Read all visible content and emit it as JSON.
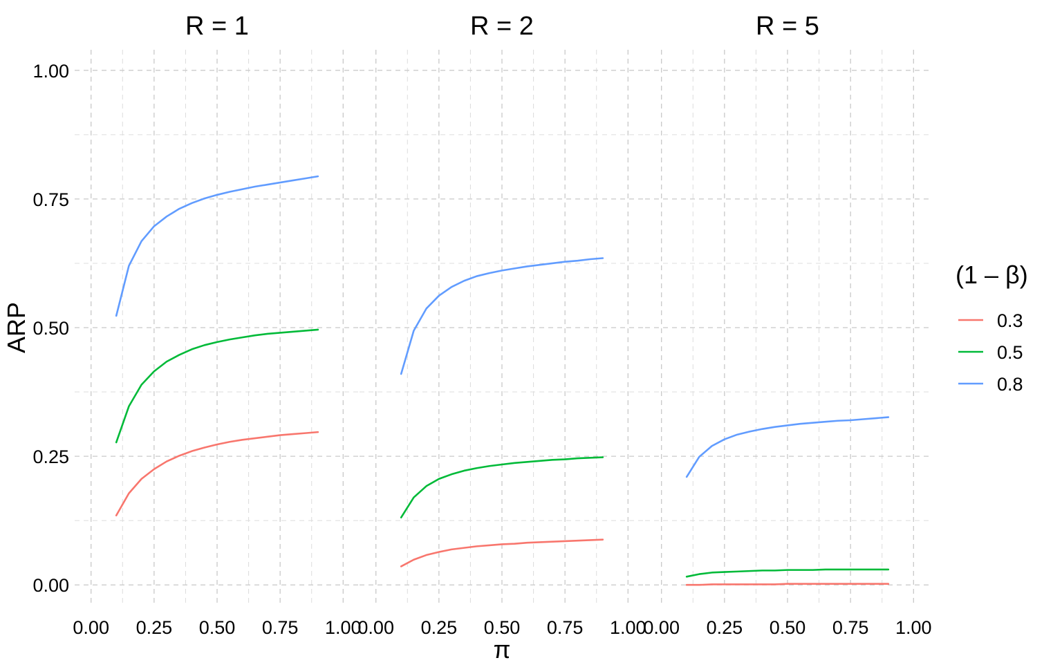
{
  "chart_data": {
    "type": "line",
    "xlabel": "π",
    "ylabel": "ARP",
    "xlim": [
      0,
      1
    ],
    "ylim": [
      -0.04,
      1.04
    ],
    "x_ticks": [
      0,
      0.25,
      0.5,
      0.75,
      1
    ],
    "x_tick_labels": [
      "0.00",
      "0.25",
      "0.50",
      "0.75",
      "1.00"
    ],
    "y_ticks": [
      0,
      0.25,
      0.5,
      0.75,
      1
    ],
    "y_tick_labels": [
      "0.00",
      "0.25",
      "0.50",
      "0.75",
      "1.00"
    ],
    "grid": true,
    "legend": {
      "title": "(1 – β)",
      "placement": "right",
      "entries": [
        {
          "label": "0.3",
          "color": "#F8766D"
        },
        {
          "label": "0.5",
          "color": "#00BA38"
        },
        {
          "label": "0.8",
          "color": "#619CFF"
        }
      ]
    },
    "x": [
      0.1,
      0.15,
      0.2,
      0.25,
      0.3,
      0.35,
      0.4,
      0.45,
      0.5,
      0.55,
      0.6,
      0.65,
      0.7,
      0.75,
      0.8,
      0.85,
      0.9
    ],
    "panels": [
      {
        "title": "R = 1",
        "series": [
          {
            "name": "0.3",
            "color": "#F8766D",
            "values": [
              0.135,
              0.178,
              0.206,
              0.225,
              0.24,
              0.251,
              0.26,
              0.267,
              0.273,
              0.278,
              0.282,
              0.285,
              0.288,
              0.291,
              0.293,
              0.295,
              0.297
            ]
          },
          {
            "name": "0.5",
            "color": "#00BA38",
            "values": [
              0.277,
              0.347,
              0.389,
              0.415,
              0.434,
              0.447,
              0.458,
              0.466,
              0.472,
              0.477,
              0.481,
              0.485,
              0.488,
              0.49,
              0.492,
              0.494,
              0.496
            ]
          },
          {
            "name": "0.8",
            "color": "#619CFF",
            "values": [
              0.523,
              0.62,
              0.668,
              0.697,
              0.716,
              0.731,
              0.742,
              0.751,
              0.758,
              0.764,
              0.769,
              0.774,
              0.778,
              0.782,
              0.786,
              0.79,
              0.794
            ]
          }
        ]
      },
      {
        "title": "R = 2",
        "series": [
          {
            "name": "0.3",
            "color": "#F8766D",
            "values": [
              0.036,
              0.049,
              0.058,
              0.064,
              0.069,
              0.072,
              0.075,
              0.077,
              0.079,
              0.08,
              0.082,
              0.083,
              0.084,
              0.085,
              0.086,
              0.087,
              0.088
            ]
          },
          {
            "name": "0.5",
            "color": "#00BA38",
            "values": [
              0.131,
              0.17,
              0.192,
              0.206,
              0.215,
              0.222,
              0.227,
              0.231,
              0.234,
              0.237,
              0.239,
              0.241,
              0.243,
              0.244,
              0.246,
              0.247,
              0.248
            ]
          },
          {
            "name": "0.8",
            "color": "#619CFF",
            "values": [
              0.41,
              0.494,
              0.537,
              0.562,
              0.579,
              0.591,
              0.6,
              0.606,
              0.611,
              0.615,
              0.619,
              0.622,
              0.625,
              0.628,
              0.63,
              0.633,
              0.635
            ]
          }
        ]
      },
      {
        "title": "R = 5",
        "series": [
          {
            "name": "0.3",
            "color": "#F8766D",
            "values": [
              0.0,
              0.0,
              0.001,
              0.001,
              0.001,
              0.001,
              0.001,
              0.001,
              0.002,
              0.002,
              0.002,
              0.002,
              0.002,
              0.002,
              0.002,
              0.002,
              0.002
            ]
          },
          {
            "name": "0.5",
            "color": "#00BA38",
            "values": [
              0.016,
              0.021,
              0.024,
              0.025,
              0.026,
              0.027,
              0.028,
              0.028,
              0.029,
              0.029,
              0.029,
              0.03,
              0.03,
              0.03,
              0.03,
              0.03,
              0.03
            ]
          },
          {
            "name": "0.8",
            "color": "#619CFF",
            "values": [
              0.21,
              0.249,
              0.27,
              0.283,
              0.292,
              0.298,
              0.303,
              0.307,
              0.31,
              0.313,
              0.315,
              0.317,
              0.319,
              0.32,
              0.322,
              0.324,
              0.326
            ]
          }
        ]
      }
    ]
  }
}
